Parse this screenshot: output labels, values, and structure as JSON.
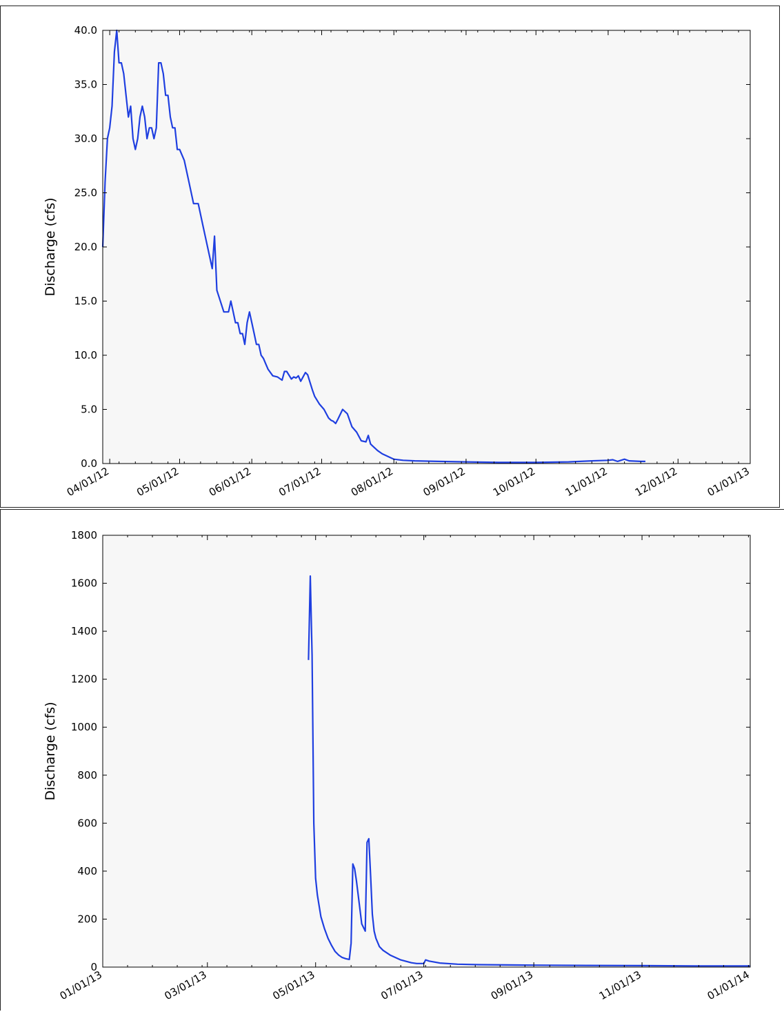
{
  "colors": {
    "line": "#1f3fe0",
    "plot_background": "#f7f7f7",
    "axes": "#000000"
  },
  "chart_data": [
    {
      "type": "line",
      "title": "",
      "xlabel": "",
      "ylabel": "Discharge (cfs)",
      "ylim": [
        0,
        40
      ],
      "xlim": [
        "2012-03-29",
        "2013-01-01"
      ],
      "grid": false,
      "legend": "none",
      "xtick_labels": [
        "04/01/12",
        "05/01/12",
        "06/01/12",
        "07/01/12",
        "08/01/12",
        "09/01/12",
        "10/01/12",
        "11/01/12",
        "12/01/12",
        "01/01/13"
      ],
      "xtick_dates": [
        "2012-04-01",
        "2012-05-01",
        "2012-06-01",
        "2012-07-01",
        "2012-08-01",
        "2012-09-01",
        "2012-10-01",
        "2012-11-01",
        "2012-12-01",
        "2013-01-01"
      ],
      "ytick_labels": [
        "0.0",
        "5.0",
        "10.0",
        "15.0",
        "20.0",
        "25.0",
        "30.0",
        "35.0",
        "40.0"
      ],
      "yticks": [
        0,
        5,
        10,
        15,
        20,
        25,
        30,
        35,
        40
      ],
      "series": [
        {
          "x": [
            "2012-03-29",
            "2012-03-30",
            "2012-03-31",
            "2012-04-01",
            "2012-04-02",
            "2012-04-03",
            "2012-04-04",
            "2012-04-05",
            "2012-04-06",
            "2012-04-07",
            "2012-04-08",
            "2012-04-09",
            "2012-04-10",
            "2012-04-11",
            "2012-04-12",
            "2012-04-13",
            "2012-04-14",
            "2012-04-15",
            "2012-04-16",
            "2012-04-17",
            "2012-04-18",
            "2012-04-19",
            "2012-04-20",
            "2012-04-21",
            "2012-04-22",
            "2012-04-23",
            "2012-04-24",
            "2012-04-25",
            "2012-04-26",
            "2012-04-27",
            "2012-04-28",
            "2012-04-29",
            "2012-04-30",
            "2012-05-01",
            "2012-05-03",
            "2012-05-05",
            "2012-05-07",
            "2012-05-09",
            "2012-05-11",
            "2012-05-12",
            "2012-05-13",
            "2012-05-14",
            "2012-05-15",
            "2012-05-16",
            "2012-05-17",
            "2012-05-20",
            "2012-05-21",
            "2012-05-22",
            "2012-05-23",
            "2012-05-24",
            "2012-05-25",
            "2012-05-26",
            "2012-05-27",
            "2012-05-28",
            "2012-05-29",
            "2012-05-30",
            "2012-05-31",
            "2012-06-01",
            "2012-06-02",
            "2012-06-03",
            "2012-06-04",
            "2012-06-05",
            "2012-06-06",
            "2012-06-07",
            "2012-06-08",
            "2012-06-10",
            "2012-06-12",
            "2012-06-14",
            "2012-06-15",
            "2012-06-16",
            "2012-06-18",
            "2012-06-19",
            "2012-06-20",
            "2012-06-21",
            "2012-06-22",
            "2012-06-24",
            "2012-06-25",
            "2012-06-26",
            "2012-06-27",
            "2012-06-28",
            "2012-06-30",
            "2012-07-02",
            "2012-07-04",
            "2012-07-05",
            "2012-07-06",
            "2012-07-07",
            "2012-07-08",
            "2012-07-10",
            "2012-07-12",
            "2012-07-14",
            "2012-07-16",
            "2012-07-18",
            "2012-07-20",
            "2012-07-21",
            "2012-07-22",
            "2012-07-23",
            "2012-07-25",
            "2012-07-27",
            "2012-07-30",
            "2012-08-01",
            "2012-08-05",
            "2012-08-10",
            "2012-08-20",
            "2012-09-01",
            "2012-09-15",
            "2012-10-01",
            "2012-10-15",
            "2012-10-20",
            "2012-10-25",
            "2012-11-01",
            "2012-11-03",
            "2012-11-05",
            "2012-11-08",
            "2012-11-10",
            "2012-11-15",
            "2012-11-17"
          ],
          "y": [
            20,
            26,
            30,
            31,
            33,
            38,
            40,
            37,
            37,
            36,
            34,
            32,
            33,
            30,
            29,
            30,
            32,
            33,
            32,
            30,
            31,
            31,
            30,
            31,
            37,
            37,
            36,
            34,
            34,
            32,
            31,
            31,
            29,
            29,
            28,
            26,
            24,
            24,
            22,
            21,
            20,
            19,
            18,
            21,
            16,
            14,
            14,
            14,
            15,
            14,
            13,
            13,
            12,
            12,
            11,
            13,
            14,
            13,
            12,
            11,
            11,
            10,
            9.7,
            9.2,
            8.7,
            8.1,
            8.0,
            7.7,
            8.5,
            8.5,
            7.8,
            8.0,
            7.9,
            8.1,
            7.6,
            8.4,
            8.2,
            7.5,
            6.8,
            6.2,
            5.5,
            5.0,
            4.2,
            4.0,
            3.9,
            3.7,
            4.1,
            5.0,
            4.6,
            3.4,
            2.9,
            2.1,
            2.0,
            2.6,
            1.8,
            1.6,
            1.2,
            0.9,
            0.6,
            0.4,
            0.3,
            0.25,
            0.2,
            0.15,
            0.1,
            0.1,
            0.15,
            0.2,
            0.25,
            0.3,
            0.35,
            0.2,
            0.4,
            0.25,
            0.2,
            0.2
          ]
        }
      ]
    },
    {
      "type": "line",
      "title": "",
      "xlabel": "",
      "ylabel": "Discharge (cfs)",
      "ylim": [
        0,
        1800
      ],
      "xlim": [
        "2013-01-01",
        "2014-01-01"
      ],
      "grid": false,
      "legend": "none",
      "xtick_labels": [
        "01/01/13",
        "03/01/13",
        "05/01/13",
        "07/01/13",
        "09/01/13",
        "11/01/13",
        "01/01/14"
      ],
      "xtick_dates": [
        "2013-01-01",
        "2013-03-01",
        "2013-05-01",
        "2013-07-01",
        "2013-09-01",
        "2013-11-01",
        "2014-01-01"
      ],
      "ytick_labels": [
        "0",
        "200",
        "400",
        "600",
        "800",
        "1000",
        "1200",
        "1400",
        "1600",
        "1800"
      ],
      "yticks": [
        0,
        200,
        400,
        600,
        800,
        1000,
        1200,
        1400,
        1600,
        1800
      ],
      "series": [
        {
          "x": [
            "2013-04-27",
            "2013-04-28",
            "2013-04-29",
            "2013-04-30",
            "2013-05-01",
            "2013-05-02",
            "2013-05-04",
            "2013-05-06",
            "2013-05-08",
            "2013-05-10",
            "2013-05-12",
            "2013-05-14",
            "2013-05-16",
            "2013-05-18",
            "2013-05-20",
            "2013-05-21",
            "2013-05-22",
            "2013-05-23",
            "2013-05-24",
            "2013-05-25",
            "2013-05-27",
            "2013-05-29",
            "2013-05-30",
            "2013-05-31",
            "2013-06-01",
            "2013-06-02",
            "2013-06-03",
            "2013-06-04",
            "2013-06-06",
            "2013-06-08",
            "2013-06-12",
            "2013-06-18",
            "2013-06-24",
            "2013-06-27",
            "2013-07-01",
            "2013-07-02",
            "2013-07-04",
            "2013-07-10",
            "2013-07-20",
            "2013-08-01",
            "2013-09-01",
            "2013-10-01",
            "2013-11-01",
            "2013-12-01",
            "2014-01-01"
          ],
          "y": [
            1280,
            1630,
            1300,
            600,
            370,
            300,
            210,
            160,
            120,
            90,
            65,
            50,
            40,
            35,
            32,
            100,
            430,
            410,
            360,
            300,
            180,
            150,
            520,
            535,
            380,
            220,
            150,
            120,
            85,
            70,
            50,
            30,
            18,
            15,
            15,
            30,
            25,
            17,
            12,
            10,
            8,
            7,
            6,
            5,
            5
          ]
        }
      ]
    }
  ]
}
